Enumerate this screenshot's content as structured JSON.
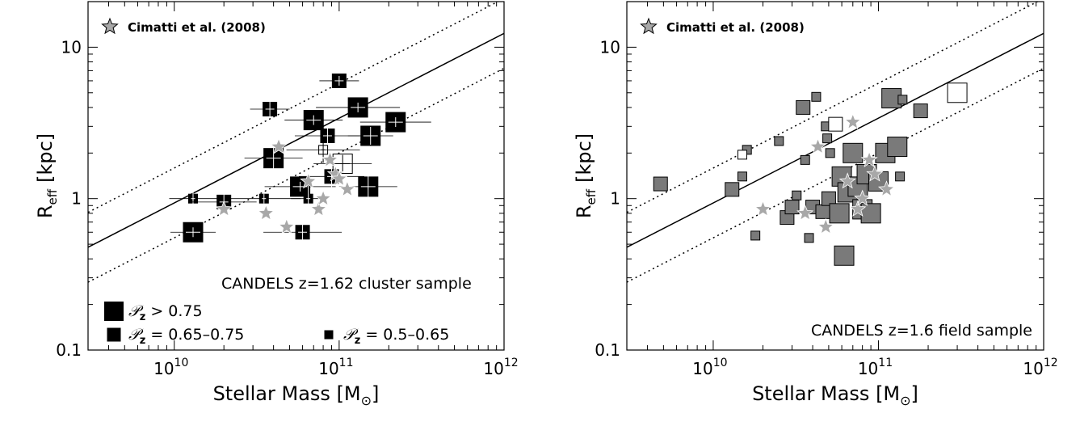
{
  "chart_data": [
    {
      "type": "scatter",
      "panel": "left",
      "xlabel_main": "Stellar Mass [M",
      "xlabel_sub": "⊙",
      "xlabel_close": "]",
      "ylabel_main": "R",
      "ylabel_sub": "eff",
      "ylabel_unit": "[kpc]",
      "x_scale": "log",
      "y_scale": "log",
      "xlim": [
        3000000000.0,
        1000000000000.0
      ],
      "ylim": [
        0.1,
        20
      ],
      "x_ticks": [
        {
          "value": 10000000000.0,
          "base": "10",
          "exp": "10"
        },
        {
          "value": 100000000000.0,
          "base": "10",
          "exp": "11"
        },
        {
          "value": 1000000000000.0,
          "base": "10",
          "exp": "12"
        }
      ],
      "y_ticks": [
        {
          "value": 0.1,
          "label": "0.1"
        },
        {
          "value": 1,
          "label": "1"
        },
        {
          "value": 10,
          "label": "10"
        }
      ],
      "legend_star_label": "Cimatti et al. (2008)",
      "sample_label": "CANDELS z=1.62 cluster sample",
      "legend_sizes": [
        {
          "symbol": "𝒫",
          "sub": "z",
          "text": " > 0.75",
          "size": "large"
        },
        {
          "symbol": "𝒫",
          "sub": "z",
          "text": " = 0.65–0.75",
          "size": "medium"
        },
        {
          "symbol": "𝒫",
          "sub": "z",
          "text": " = 0.5–0.65",
          "size": "small"
        }
      ],
      "relation": {
        "slope": 0.56,
        "pivot_mass": 100000000000.0,
        "pivot_r": 3.4,
        "scatter_factor": 1.7
      },
      "series": [
        {
          "name": "cluster members",
          "points": [
            {
              "mass": 13000000000.0,
              "r": 0.6,
              "size": "large",
              "fill": "black"
            },
            {
              "mass": 13000000000.0,
              "r": 1.0,
              "size": "small",
              "fill": "black"
            },
            {
              "mass": 20000000000.0,
              "r": 0.95,
              "size": "medium",
              "fill": "black"
            },
            {
              "mass": 35000000000.0,
              "r": 1.0,
              "size": "small",
              "fill": "black"
            },
            {
              "mass": 38000000000.0,
              "r": 3.9,
              "size": "medium",
              "fill": "black"
            },
            {
              "mass": 40000000000.0,
              "r": 1.85,
              "size": "large",
              "fill": "black"
            },
            {
              "mass": 58000000000.0,
              "r": 1.2,
              "size": "large",
              "fill": "black"
            },
            {
              "mass": 60000000000.0,
              "r": 0.6,
              "size": "medium",
              "fill": "black"
            },
            {
              "mass": 65000000000.0,
              "r": 1.0,
              "size": "small",
              "fill": "black"
            },
            {
              "mass": 70000000000.0,
              "r": 3.3,
              "size": "large",
              "fill": "black"
            },
            {
              "mass": 85000000000.0,
              "r": 2.6,
              "size": "medium",
              "fill": "black"
            },
            {
              "mass": 80000000000.0,
              "r": 2.1,
              "size": "small",
              "fill": "white"
            },
            {
              "mass": 100000000000.0,
              "r": 6.0,
              "size": "medium",
              "fill": "black"
            },
            {
              "mass": 105000000000.0,
              "r": 1.7,
              "size": "large",
              "fill": "white"
            },
            {
              "mass": 90000000000.0,
              "r": 1.4,
              "size": "medium",
              "fill": "black"
            },
            {
              "mass": 130000000000.0,
              "r": 4.0,
              "size": "large",
              "fill": "black"
            },
            {
              "mass": 155000000000.0,
              "r": 2.6,
              "size": "large",
              "fill": "black"
            },
            {
              "mass": 150000000000.0,
              "r": 1.2,
              "size": "large",
              "fill": "black"
            },
            {
              "mass": 220000000000.0,
              "r": 3.2,
              "size": "large",
              "fill": "black"
            }
          ]
        },
        {
          "name": "Cimatti et al. (2008)",
          "points": [
            {
              "mass": 20000000000.0,
              "r": 0.85
            },
            {
              "mass": 36000000000.0,
              "r": 0.8
            },
            {
              "mass": 43000000000.0,
              "r": 2.2
            },
            {
              "mass": 48000000000.0,
              "r": 0.65
            },
            {
              "mass": 65000000000.0,
              "r": 1.3
            },
            {
              "mass": 75000000000.0,
              "r": 0.85
            },
            {
              "mass": 80000000000.0,
              "r": 1.0
            },
            {
              "mass": 88000000000.0,
              "r": 1.8
            },
            {
              "mass": 95000000000.0,
              "r": 1.45
            },
            {
              "mass": 100000000000.0,
              "r": 1.35
            },
            {
              "mass": 112000000000.0,
              "r": 1.15
            }
          ]
        }
      ]
    },
    {
      "type": "scatter",
      "panel": "right",
      "xlabel_main": "Stellar Mass [M",
      "xlabel_sub": "⊙",
      "xlabel_close": "]",
      "ylabel_main": "R",
      "ylabel_sub": "eff",
      "ylabel_unit": "[kpc]",
      "x_scale": "log",
      "y_scale": "log",
      "xlim": [
        3000000000.0,
        1000000000000.0
      ],
      "ylim": [
        0.1,
        20
      ],
      "x_ticks": [
        {
          "value": 10000000000.0,
          "base": "10",
          "exp": "10"
        },
        {
          "value": 100000000000.0,
          "base": "10",
          "exp": "11"
        },
        {
          "value": 1000000000000.0,
          "base": "10",
          "exp": "12"
        }
      ],
      "y_ticks": [
        {
          "value": 0.1,
          "label": "0.1"
        },
        {
          "value": 1,
          "label": "1"
        },
        {
          "value": 10,
          "label": "10"
        }
      ],
      "legend_star_label": "Cimatti et al. (2008)",
      "sample_label": "CANDELS z=1.6 field sample",
      "relation": {
        "slope": 0.56,
        "pivot_mass": 100000000000.0,
        "pivot_r": 3.4,
        "scatter_factor": 1.7
      },
      "series": [
        {
          "name": "field galaxies",
          "points": [
            {
              "mass": 4800000000.0,
              "r": 1.25,
              "size": "medium",
              "fill": "gray"
            },
            {
              "mass": 13000000000.0,
              "r": 1.15,
              "size": "medium",
              "fill": "gray"
            },
            {
              "mass": 15000000000.0,
              "r": 1.4,
              "size": "small",
              "fill": "gray"
            },
            {
              "mass": 16000000000.0,
              "r": 2.1,
              "size": "small",
              "fill": "gray"
            },
            {
              "mass": 15000000000.0,
              "r": 1.95,
              "size": "small",
              "fill": "white"
            },
            {
              "mass": 18000000000.0,
              "r": 0.57,
              "size": "small",
              "fill": "gray"
            },
            {
              "mass": 25000000000.0,
              "r": 2.4,
              "size": "small",
              "fill": "gray"
            },
            {
              "mass": 28000000000.0,
              "r": 0.75,
              "size": "medium",
              "fill": "gray"
            },
            {
              "mass": 30000000000.0,
              "r": 0.88,
              "size": "medium",
              "fill": "gray"
            },
            {
              "mass": 32000000000.0,
              "r": 1.05,
              "size": "small",
              "fill": "gray"
            },
            {
              "mass": 35000000000.0,
              "r": 4.0,
              "size": "medium",
              "fill": "gray"
            },
            {
              "mass": 36000000000.0,
              "r": 1.8,
              "size": "small",
              "fill": "gray"
            },
            {
              "mass": 38000000000.0,
              "r": 0.55,
              "size": "small",
              "fill": "gray"
            },
            {
              "mass": 40000000000.0,
              "r": 0.88,
              "size": "medium",
              "fill": "gray"
            },
            {
              "mass": 42000000000.0,
              "r": 4.7,
              "size": "small",
              "fill": "gray"
            },
            {
              "mass": 46000000000.0,
              "r": 0.82,
              "size": "medium",
              "fill": "gray"
            },
            {
              "mass": 48000000000.0,
              "r": 3.0,
              "size": "small",
              "fill": "gray"
            },
            {
              "mass": 49000000000.0,
              "r": 2.5,
              "size": "small",
              "fill": "gray"
            },
            {
              "mass": 50000000000.0,
              "r": 1.0,
              "size": "medium",
              "fill": "gray"
            },
            {
              "mass": 51000000000.0,
              "r": 2.0,
              "size": "small",
              "fill": "gray"
            },
            {
              "mass": 55000000000.0,
              "r": 3.1,
              "size": "medium",
              "fill": "white"
            },
            {
              "mass": 58000000000.0,
              "r": 0.8,
              "size": "large",
              "fill": "gray"
            },
            {
              "mass": 60000000000.0,
              "r": 1.4,
              "size": "large",
              "fill": "gray"
            },
            {
              "mass": 62000000000.0,
              "r": 0.42,
              "size": "large",
              "fill": "gray"
            },
            {
              "mass": 65000000000.0,
              "r": 1.1,
              "size": "large",
              "fill": "gray"
            },
            {
              "mass": 70000000000.0,
              "r": 2.0,
              "size": "large",
              "fill": "gray"
            },
            {
              "mass": 75000000000.0,
              "r": 1.2,
              "size": "large",
              "fill": "gray"
            },
            {
              "mass": 80000000000.0,
              "r": 0.85,
              "size": "large",
              "fill": "gray"
            },
            {
              "mass": 85000000000.0,
              "r": 1.45,
              "size": "large",
              "fill": "gray"
            },
            {
              "mass": 90000000000.0,
              "r": 0.8,
              "size": "large",
              "fill": "gray"
            },
            {
              "mass": 100000000000.0,
              "r": 1.3,
              "size": "large",
              "fill": "gray"
            },
            {
              "mass": 110000000000.0,
              "r": 2.0,
              "size": "large",
              "fill": "gray"
            },
            {
              "mass": 120000000000.0,
              "r": 4.6,
              "size": "large",
              "fill": "gray"
            },
            {
              "mass": 130000000000.0,
              "r": 2.2,
              "size": "large",
              "fill": "gray"
            },
            {
              "mass": 135000000000.0,
              "r": 1.4,
              "size": "small",
              "fill": "gray"
            },
            {
              "mass": 140000000000.0,
              "r": 4.5,
              "size": "small",
              "fill": "gray"
            },
            {
              "mass": 180000000000.0,
              "r": 3.8,
              "size": "medium",
              "fill": "gray"
            },
            {
              "mass": 300000000000.0,
              "r": 5.0,
              "size": "large",
              "fill": "white"
            }
          ]
        },
        {
          "name": "Cimatti et al. (2008)",
          "points": [
            {
              "mass": 20000000000.0,
              "r": 0.85
            },
            {
              "mass": 36000000000.0,
              "r": 0.8
            },
            {
              "mass": 43000000000.0,
              "r": 2.2
            },
            {
              "mass": 48000000000.0,
              "r": 0.65
            },
            {
              "mass": 65000000000.0,
              "r": 1.3
            },
            {
              "mass": 70000000000.0,
              "r": 3.2
            },
            {
              "mass": 75000000000.0,
              "r": 0.85
            },
            {
              "mass": 80000000000.0,
              "r": 1.0
            },
            {
              "mass": 88000000000.0,
              "r": 1.8
            },
            {
              "mass": 95000000000.0,
              "r": 1.45
            },
            {
              "mass": 112000000000.0,
              "r": 1.15
            }
          ]
        }
      ]
    }
  ]
}
